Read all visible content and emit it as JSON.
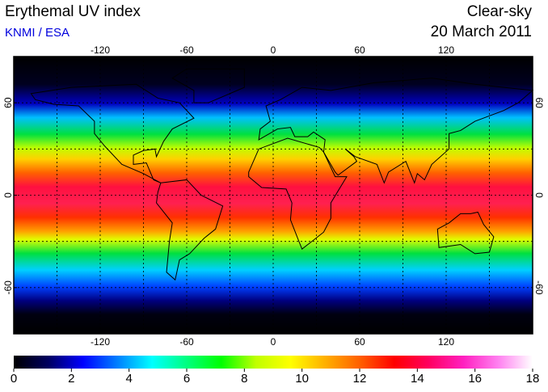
{
  "title": "Erythemal UV index",
  "subtitle": "KNMI / ESA",
  "mode": "Clear-sky",
  "date": "20 March 2011",
  "map": {
    "xlim": [
      -180,
      180
    ],
    "ylim": [
      -90,
      90
    ],
    "xticks": [
      -120,
      -60,
      0,
      60,
      120
    ],
    "yticks": [
      -60,
      0,
      60
    ],
    "xgrid": [
      -150,
      -120,
      -90,
      -60,
      -30,
      0,
      30,
      60,
      90,
      120,
      150
    ],
    "ygrid": [
      -60,
      -30,
      0,
      30,
      60
    ]
  },
  "colorbar": {
    "range": [
      0,
      18
    ],
    "ticks": [
      0,
      2,
      4,
      6,
      8,
      10,
      12,
      14,
      16,
      18
    ],
    "colormap": [
      "#000000",
      "#000060",
      "#0000ff",
      "#0080ff",
      "#00ffff",
      "#00ff80",
      "#00ff00",
      "#c0ff00",
      "#ffff00",
      "#ffb000",
      "#ff6000",
      "#ff0000",
      "#ff0060",
      "#ff20c0",
      "#ff80f0",
      "#ffffff"
    ]
  }
}
